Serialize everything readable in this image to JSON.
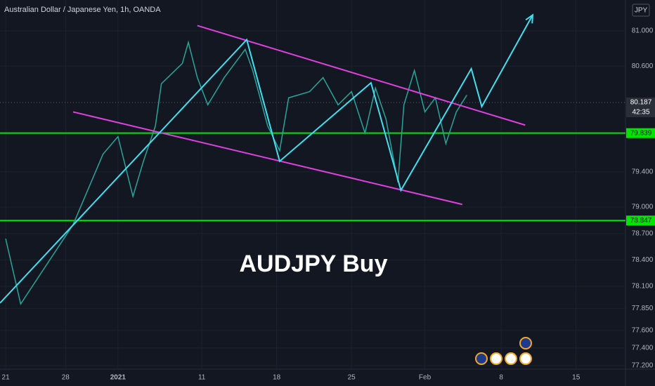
{
  "chart_data": {
    "type": "line",
    "title": "Australian Dollar / Japanese Yen, 1h, OANDA",
    "annotation": "AUDJPY Buy",
    "currency": "JPY",
    "color": "#26a69a",
    "grid": true,
    "x": [
      0,
      1,
      4.5,
      6.5,
      7.5,
      8.5,
      9.2,
      10,
      10.4,
      11.8,
      12.2,
      12.8,
      13.5,
      14.6,
      16,
      16.5,
      17.5,
      18.3,
      18.9,
      20.3,
      21.2,
      22.2,
      23.1,
      24,
      24.7,
      25.4,
      26.2,
      26.6,
      27.3,
      28,
      28.7,
      29.4,
      30.1,
      30.8
    ],
    "values": [
      78.64,
      77.9,
      78.8,
      79.6,
      79.8,
      79.12,
      79.52,
      79.92,
      80.4,
      80.63,
      80.87,
      80.47,
      80.16,
      80.47,
      80.79,
      80.55,
      79.92,
      79.64,
      80.24,
      80.31,
      80.47,
      80.16,
      80.31,
      79.84,
      80.35,
      80.0,
      79.28,
      80.16,
      80.55,
      80.08,
      80.24,
      79.72,
      80.08,
      80.27
    ],
    "xlim": [
      -0.38,
      41.4
    ],
    "ylim": [
      77.16,
      81.35
    ],
    "xticks": [
      {
        "value": 0,
        "label": "21"
      },
      {
        "value": 4,
        "label": "28"
      },
      {
        "value": 7.5,
        "label": "2021"
      },
      {
        "value": 13.1,
        "label": "11"
      },
      {
        "value": 18.1,
        "label": "18"
      },
      {
        "value": 23.1,
        "label": "25"
      },
      {
        "value": 28,
        "label": "Feb"
      },
      {
        "value": 33.1,
        "label": "8"
      },
      {
        "value": 38.1,
        "label": "15"
      }
    ],
    "yticks": [
      {
        "value": 81,
        "label": "81.000"
      },
      {
        "value": 80.6,
        "label": "80.600"
      },
      {
        "value": 79.4,
        "label": "79.400"
      },
      {
        "value": 79,
        "label": "79.000"
      },
      {
        "value": 78.7,
        "label": "78.700"
      },
      {
        "value": 78.4,
        "label": "78.400"
      },
      {
        "value": 78.1,
        "label": "78.100"
      },
      {
        "value": 77.85,
        "label": "77.850"
      },
      {
        "value": 77.6,
        "label": "77.600"
      },
      {
        "value": 77.4,
        "label": "77.400"
      },
      {
        "value": 77.2,
        "label": "77.200"
      }
    ],
    "levels": [
      {
        "value": 79.839,
        "label": "79.839",
        "color": "#00e600"
      },
      {
        "value": 78.847,
        "label": "78.847",
        "color": "#00e600"
      }
    ],
    "last_price": {
      "value": 80.187,
      "label": "80.187",
      "countdown": "42:35"
    },
    "drawings": [
      {
        "color": "#e040e0",
        "x": [
          12.8,
          34.7
        ],
        "y": [
          81.06,
          79.93
        ]
      },
      {
        "color": "#e040e0",
        "x": [
          4.5,
          30.5
        ],
        "y": [
          80.08,
          79.03
        ]
      },
      {
        "color": "#40e0f0",
        "x": [
          -0.38,
          16.1,
          18.3,
          24.4,
          26.4,
          31.1,
          31.8,
          35.2
        ],
        "y": [
          77.91,
          80.9,
          79.52,
          80.41,
          79.19,
          80.57,
          80.14,
          81.18
        ]
      }
    ]
  }
}
